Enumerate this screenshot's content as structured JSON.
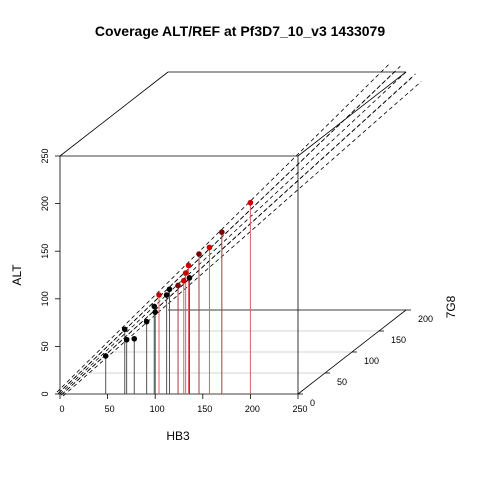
{
  "chart_data": {
    "type": "scatter",
    "title": "Coverage ALT/REF at Pf3D7_10_v3 1433079",
    "xlabel": "HB3",
    "ylabel": "7G8",
    "zlabel": "ALT",
    "xlim": [
      0,
      250
    ],
    "ylim": [
      0,
      200
    ],
    "zlim": [
      0,
      250
    ],
    "x_ticks": [
      "0",
      "50",
      "100",
      "150",
      "200",
      "250"
    ],
    "y_ticks": [
      "0",
      "50",
      "100",
      "150",
      "200"
    ],
    "z_ticks": [
      "0",
      "50",
      "100",
      "150",
      "200",
      "250"
    ],
    "colors": {
      "red": "#cc0000",
      "dark_red": "#7a0000",
      "black": "#000000"
    },
    "points": [
      {
        "x": 48,
        "y": 0,
        "z": 40,
        "color": "black"
      },
      {
        "x": 70,
        "y": 0,
        "z": 57,
        "color": "black"
      },
      {
        "x": 78,
        "y": 0,
        "z": 58,
        "color": "black"
      },
      {
        "x": 68,
        "y": 0,
        "z": 68,
        "color": "black"
      },
      {
        "x": 91,
        "y": 0,
        "z": 76,
        "color": "black"
      },
      {
        "x": 100,
        "y": 0,
        "z": 86,
        "color": "black"
      },
      {
        "x": 99,
        "y": 0,
        "z": 92,
        "color": "black"
      },
      {
        "x": 112,
        "y": 0,
        "z": 104,
        "color": "black"
      },
      {
        "x": 115,
        "y": 0,
        "z": 110,
        "color": "black"
      },
      {
        "x": 124,
        "y": 0,
        "z": 114,
        "color": "dark_red"
      },
      {
        "x": 136,
        "y": 0,
        "z": 122,
        "color": "black"
      },
      {
        "x": 104,
        "y": 0,
        "z": 104,
        "color": "red"
      },
      {
        "x": 130,
        "y": 0,
        "z": 119,
        "color": "red"
      },
      {
        "x": 132,
        "y": 0,
        "z": 127,
        "color": "red"
      },
      {
        "x": 135,
        "y": 0,
        "z": 135,
        "color": "red"
      },
      {
        "x": 146,
        "y": 0,
        "z": 147,
        "color": "dark_red"
      },
      {
        "x": 157,
        "y": 0,
        "z": 154,
        "color": "red"
      },
      {
        "x": 170,
        "y": 0,
        "z": 170,
        "color": "dark_red"
      },
      {
        "x": 200,
        "y": 0,
        "z": 201,
        "color": "red"
      }
    ]
  }
}
